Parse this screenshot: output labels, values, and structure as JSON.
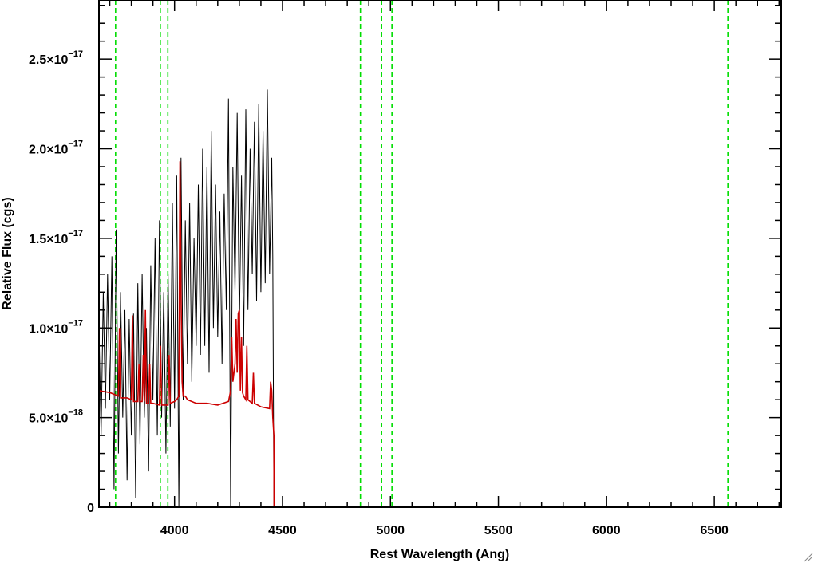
{
  "chart_data": {
    "type": "line",
    "xlabel": "Rest Wavelength (Ang)",
    "ylabel": "Relative Flux (cgs)",
    "xlim": [
      3650,
      6810
    ],
    "ylim": [
      0,
      2.83e-17
    ],
    "x_ticks": [
      4000,
      4500,
      5000,
      5500,
      6000,
      6500
    ],
    "x_tick_labels": [
      "4000",
      "4500",
      "5000",
      "5500",
      "6000",
      "6500"
    ],
    "y_ticks": [
      0,
      5e-18,
      1e-17,
      1.5e-17,
      2e-17,
      2.5e-17
    ],
    "y_tick_labels": [
      {
        "mantissa": "0",
        "exponent": ""
      },
      {
        "mantissa": "5.0×10",
        "exponent": "−18"
      },
      {
        "mantissa": "1.0×10",
        "exponent": "−17"
      },
      {
        "mantissa": "1.5×10",
        "exponent": "−17"
      },
      {
        "mantissa": "2.0×10",
        "exponent": "−17"
      },
      {
        "mantissa": "2.5×10",
        "exponent": "−17"
      }
    ],
    "reference_lines": {
      "color": "#00dd00",
      "style": "dashed",
      "x": [
        3727,
        3934,
        3969,
        4861,
        4959,
        5007,
        6563
      ]
    },
    "series": [
      {
        "color": "#000000",
        "x": [
          3650,
          3660,
          3670,
          3680,
          3690,
          3700,
          3710,
          3720,
          3730,
          3740,
          3750,
          3760,
          3770,
          3780,
          3790,
          3800,
          3810,
          3820,
          3830,
          3840,
          3850,
          3860,
          3870,
          3880,
          3890,
          3900,
          3910,
          3920,
          3930,
          3940,
          3950,
          3960,
          3970,
          3980,
          3990,
          4000,
          4010,
          4020,
          4030,
          4040,
          4050,
          4060,
          4070,
          4080,
          4090,
          4100,
          4110,
          4120,
          4130,
          4140,
          4150,
          4160,
          4170,
          4180,
          4190,
          4200,
          4210,
          4220,
          4230,
          4240,
          4250,
          4260,
          4270,
          4280,
          4290,
          4300,
          4310,
          4320,
          4330,
          4340,
          4350,
          4360,
          4370,
          4380,
          4390,
          4400,
          4410,
          4420,
          4430,
          4440,
          4450,
          4455,
          4460,
          4500,
          6810
        ],
        "values": [
          1e-17,
          4e-18,
          1.2e-17,
          5.5e-18,
          1.3e-17,
          6e-18,
          1.4e-17,
          1e-18,
          1.55e-17,
          3e-18,
          1.2e-17,
          5e-18,
          1.1e-17,
          1.5e-18,
          1.05e-17,
          4e-18,
          1.08e-17,
          5e-19,
          1.25e-17,
          3.5e-18,
          1.3e-17,
          5e-18,
          1e-17,
          2e-18,
          1.35e-17,
          6e-18,
          1.5e-17,
          4e-18,
          1.6e-17,
          5e-18,
          1.2e-17,
          3e-18,
          1.3e-17,
          4.5e-18,
          1.7e-17,
          5.5e-18,
          1.85e-17,
          0.0,
          1.95e-17,
          6e-18,
          1.6e-17,
          8e-18,
          1.7e-17,
          7e-18,
          1.5e-17,
          9e-18,
          1.8e-17,
          8.5e-18,
          2e-17,
          9e-18,
          1.9e-17,
          7.5e-18,
          2.1e-17,
          1e-17,
          1.8e-17,
          9.5e-18,
          1.65e-17,
          8e-18,
          1.75e-17,
          1.1e-17,
          2.28e-17,
          0.0,
          1.9e-17,
          1.2e-17,
          2.2e-17,
          1e-17,
          1.85e-17,
          9e-18,
          2.22e-17,
          1.1e-17,
          2e-17,
          1.3e-17,
          2.15e-17,
          1.15e-17,
          2.25e-17,
          1.2e-17,
          2.1e-17,
          1.25e-17,
          2.33e-17,
          1.3e-17,
          1.95e-17,
          1.4e-17,
          0.0,
          0.0,
          0.0
        ]
      },
      {
        "color": "#cc0000",
        "x": [
          3650,
          3700,
          3740,
          3745,
          3750,
          3780,
          3800,
          3805,
          3810,
          3830,
          3835,
          3840,
          3850,
          3855,
          3860,
          3865,
          3870,
          3880,
          3885,
          3890,
          3900,
          3930,
          3935,
          3940,
          3970,
          3975,
          3980,
          4000,
          4010,
          4020,
          4025,
          4030,
          4035,
          4040,
          4050,
          4060,
          4100,
          4150,
          4200,
          4250,
          4260,
          4265,
          4270,
          4280,
          4285,
          4290,
          4295,
          4300,
          4305,
          4310,
          4315,
          4320,
          4330,
          4335,
          4340,
          4360,
          4365,
          4370,
          4400,
          4440,
          4445,
          4450,
          4455,
          4460,
          4461,
          4500,
          6810
        ],
        "values": [
          6.5e-18,
          6.4e-18,
          6.2e-18,
          1e-17,
          6.1e-18,
          6.1e-18,
          6e-18,
          1.07e-17,
          5.9e-18,
          5.9e-18,
          8e-18,
          5.9e-18,
          5.9e-18,
          8.5e-18,
          5.9e-18,
          1.1e-17,
          5.8e-18,
          5.8e-18,
          8e-18,
          5.8e-18,
          5.8e-18,
          5.7e-18,
          9e-18,
          5.7e-18,
          5.7e-18,
          8.5e-18,
          5.8e-18,
          5.9e-18,
          6e-18,
          6.2e-18,
          1.93e-17,
          1.2e-17,
          7e-18,
          6.2e-18,
          6.2e-18,
          6e-18,
          5.8e-18,
          5.8e-18,
          5.7e-18,
          5.9e-18,
          6.5e-18,
          9.5e-18,
          7e-18,
          8e-18,
          1.05e-17,
          7.5e-18,
          1.08e-17,
          1.1e-17,
          6.5e-18,
          9.5e-18,
          6.4e-18,
          6.2e-18,
          6e-18,
          9e-18,
          6e-18,
          5.8e-18,
          7.5e-18,
          5.8e-18,
          5.6e-18,
          5.5e-18,
          7e-18,
          6.5e-18,
          5e-18,
          4e-18,
          0.0,
          0.0,
          0.0
        ]
      }
    ],
    "grid": false,
    "legend": "none"
  }
}
